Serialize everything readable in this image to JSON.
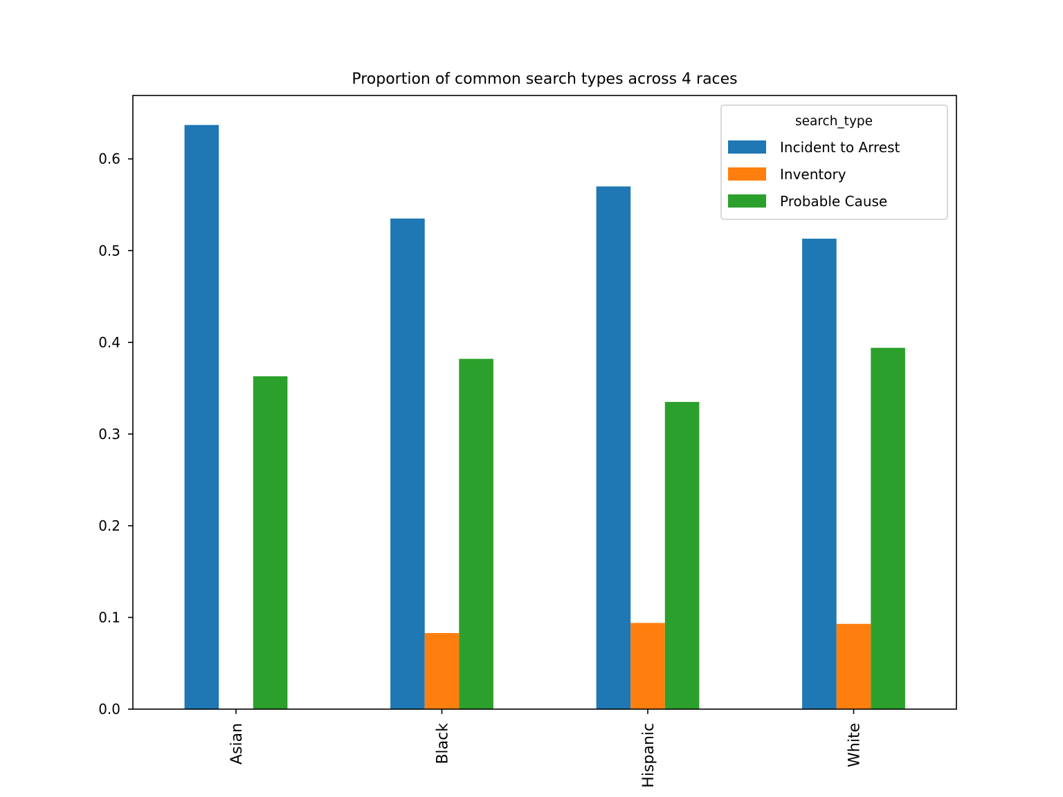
{
  "chart_data": {
    "type": "bar",
    "title": "Proportion of common search types across 4 races",
    "xlabel": "",
    "ylabel": "",
    "categories": [
      "Asian",
      "Black",
      "Hispanic",
      "White"
    ],
    "series": [
      {
        "name": "Incident to Arrest",
        "color": "#1f77b4",
        "values": [
          0.637,
          0.535,
          0.57,
          0.513
        ]
      },
      {
        "name": "Inventory",
        "color": "#ff7f0e",
        "values": [
          0.0,
          0.083,
          0.094,
          0.093
        ]
      },
      {
        "name": "Probable Cause",
        "color": "#2ca02c",
        "values": [
          0.363,
          0.382,
          0.335,
          0.394
        ]
      }
    ],
    "ylim": [
      0,
      0.67
    ],
    "yticks": [
      "0.0",
      "0.1",
      "0.2",
      "0.3",
      "0.4",
      "0.5",
      "0.6"
    ],
    "grid": false,
    "legend": {
      "title": "search_type",
      "placement": "top-right"
    }
  }
}
